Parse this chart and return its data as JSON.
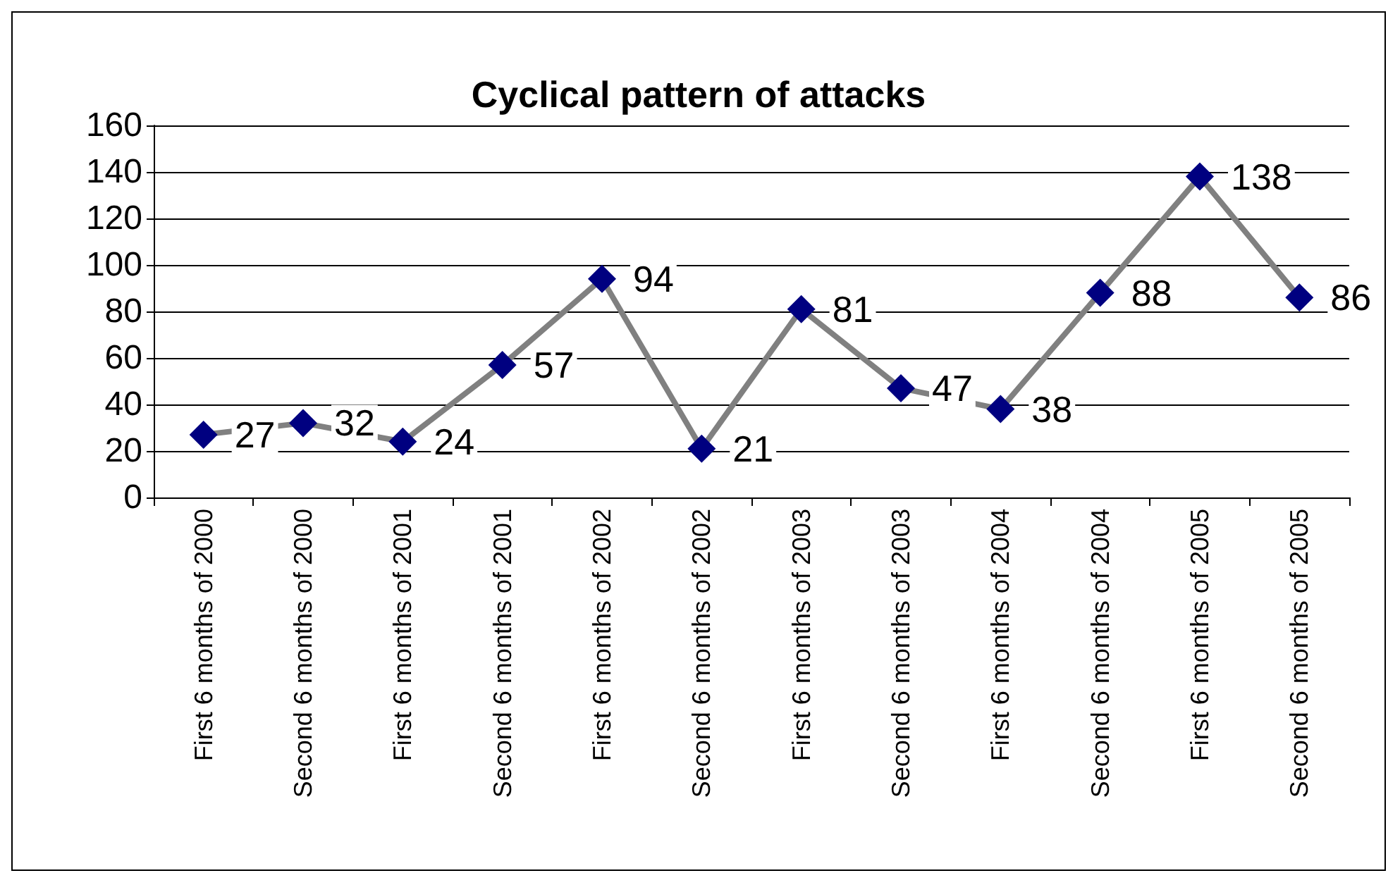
{
  "chart_data": {
    "type": "line",
    "title": "Cyclical pattern of attacks",
    "categories": [
      "First 6 months of 2000",
      "Second 6 months of 2000",
      "First 6 months of 2001",
      "Second 6 months of 2001",
      "First 6 months of 2002",
      "Second 6 months of 2002",
      "First 6 months of 2003",
      "Second 6 months of 2003",
      "First 6 months of 2004",
      "Second 6 months of 2004",
      "First 6 months of 2005",
      "Second 6 months of 2005"
    ],
    "series": [
      {
        "color": "#000080",
        "values": [
          27,
          32,
          24,
          57,
          94,
          21,
          81,
          47,
          38,
          88,
          138,
          86
        ]
      }
    ],
    "marker": "diamond",
    "data_labels": true,
    "ylim": [
      0,
      160
    ],
    "yticks": [
      0,
      20,
      40,
      60,
      80,
      100,
      120,
      140,
      160
    ],
    "grid": "y"
  }
}
